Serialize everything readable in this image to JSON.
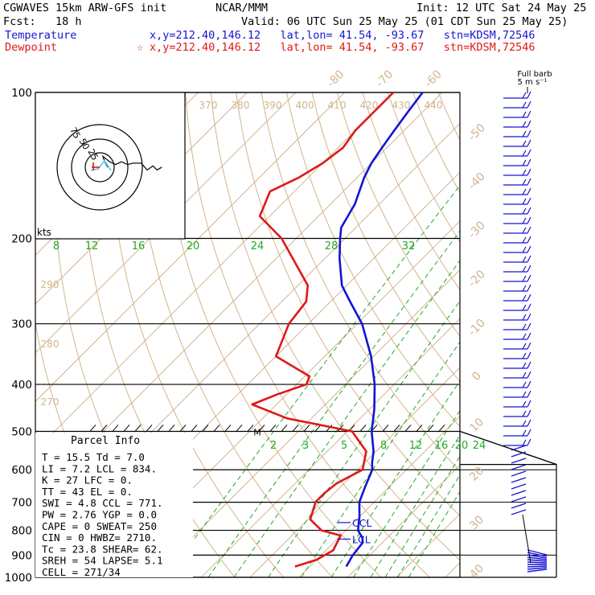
{
  "header": {
    "line1_left": "CGWAVES 15km ARW-GFS init",
    "line1_center": "NCAR/MMM",
    "line1_right": "Init: 12 UTC Sat 24 May 25",
    "line2_left": "Fcst:   18 h",
    "line2_right": "Valid: 06 UTC Sun 25 May 25 (01 CDT Sun 25 May 25)",
    "line3_label": "Temperature",
    "line3_info": "x,y=212.40,146.12   lat,lon= 41.54, -93.67   stn=KDSM,72546",
    "line4_label": "Dewpoint",
    "line4_info": "x,y=212.40,146.12   lat,lon= 41.54, -93.67   stn=KDSM,72546",
    "marker_symbol": "☆"
  },
  "colors": {
    "temperature": "#1414d4",
    "dewpoint": "#e01818",
    "isotherm": "#d2b48c",
    "mixing_ratio": "#22aa22",
    "grid": "#000000",
    "hodograph_line": "#55ccee"
  },
  "wind_panel": {
    "title_line1": "Full barb",
    "title_line2": "5 m s⁻¹"
  },
  "hodograph": {
    "units_label": "kts",
    "ring_labels": [
      "25",
      "50",
      "75"
    ]
  },
  "parcel_info": {
    "title": "Parcel Info",
    "rows": [
      "T  =   15.5 Td =   7.0",
      "LI =    7.2 LCL =  834.",
      "K  =     27 LFC =    0.",
      "TT =     43 EL  =    0.",
      "SWI =   4.8 CCL =  771.",
      "PW =   2.76 YGP =  0.0",
      "CAPE =    0 SWEAT=  250",
      "CIN  =    0 HWBZ= 2710.",
      "Tc  =  23.8 SHEAR=  62.",
      "SREH =   54 LAPSE=  5.1",
      "CELL = 271/34"
    ]
  },
  "chart_data": {
    "type": "skew-t",
    "pressure_axis": {
      "scale": "log",
      "ylim_hPa": [
        1000,
        100
      ],
      "ticks": [
        100,
        200,
        300,
        400,
        500,
        600,
        700,
        800,
        900,
        1000
      ]
    },
    "temperature_axis": {
      "xlim_C_at_1000hPa": [
        -44,
        43
      ],
      "isotherm_labels": [
        -80,
        -70,
        -60,
        -50,
        -40,
        -30,
        -20,
        -10,
        0,
        10,
        20,
        30,
        40
      ]
    },
    "dry_adiabat_labels_K": [
      270,
      280,
      290,
      370,
      380,
      390,
      400,
      410,
      420,
      430,
      440
    ],
    "mixing_ratio_labels_upper": [
      8,
      12,
      16,
      20,
      24,
      28,
      32
    ],
    "mixing_ratio_labels_lower": [
      2,
      3,
      5,
      8,
      12,
      16,
      20,
      24
    ],
    "series": [
      {
        "name": "Temperature",
        "points": [
          {
            "p": 950,
            "t": 17.5
          },
          {
            "p": 900,
            "t": 16.5
          },
          {
            "p": 850,
            "t": 16.0
          },
          {
            "p": 830,
            "t": 15.0
          },
          {
            "p": 800,
            "t": 12.5
          },
          {
            "p": 780,
            "t": 11.5
          },
          {
            "p": 750,
            "t": 10.0
          },
          {
            "p": 700,
            "t": 7.0
          },
          {
            "p": 650,
            "t": 5.0
          },
          {
            "p": 600,
            "t": 3.0
          },
          {
            "p": 580,
            "t": 1.5
          },
          {
            "p": 550,
            "t": -0.5
          },
          {
            "p": 500,
            "t": -5.0
          },
          {
            "p": 450,
            "t": -9.0
          },
          {
            "p": 400,
            "t": -14.0
          },
          {
            "p": 350,
            "t": -20.5
          },
          {
            "p": 300,
            "t": -29.0
          },
          {
            "p": 270,
            "t": -36.0
          },
          {
            "p": 250,
            "t": -41.0
          },
          {
            "p": 220,
            "t": -47.0
          },
          {
            "p": 200,
            "t": -51.0
          },
          {
            "p": 190,
            "t": -53.0
          },
          {
            "p": 170,
            "t": -55.0
          },
          {
            "p": 150,
            "t": -58.5
          },
          {
            "p": 140,
            "t": -60.0
          },
          {
            "p": 130,
            "t": -61.0
          },
          {
            "p": 120,
            "t": -62.0
          },
          {
            "p": 110,
            "t": -63.0
          },
          {
            "p": 100,
            "t": -64.0
          }
        ]
      },
      {
        "name": "Dewpoint",
        "points": [
          {
            "p": 950,
            "t": 7.0
          },
          {
            "p": 920,
            "t": 10.0
          },
          {
            "p": 880,
            "t": 11.5
          },
          {
            "p": 820,
            "t": 10.0
          },
          {
            "p": 800,
            "t": 5.0
          },
          {
            "p": 760,
            "t": 0.5
          },
          {
            "p": 700,
            "t": -2.0
          },
          {
            "p": 670,
            "t": -2.0
          },
          {
            "p": 640,
            "t": -1.5
          },
          {
            "p": 600,
            "t": 1.0
          },
          {
            "p": 550,
            "t": -2.0
          },
          {
            "p": 500,
            "t": -9.0
          },
          {
            "p": 470,
            "t": -25.0
          },
          {
            "p": 440,
            "t": -35.0
          },
          {
            "p": 420,
            "t": -32.0
          },
          {
            "p": 400,
            "t": -28.0
          },
          {
            "p": 385,
            "t": -29.0
          },
          {
            "p": 350,
            "t": -40.0
          },
          {
            "p": 300,
            "t": -44.0
          },
          {
            "p": 270,
            "t": -45.0
          },
          {
            "p": 250,
            "t": -48.0
          },
          {
            "p": 200,
            "t": -63.0
          },
          {
            "p": 180,
            "t": -72.0
          },
          {
            "p": 160,
            "t": -75.0
          },
          {
            "p": 150,
            "t": -72.0
          },
          {
            "p": 140,
            "t": -70.0
          },
          {
            "p": 130,
            "t": -69.0
          },
          {
            "p": 120,
            "t": -70.0
          },
          {
            "p": 110,
            "t": -70.0
          },
          {
            "p": 100,
            "t": -70.0
          }
        ]
      }
    ],
    "annotations": [
      {
        "label": "CCL",
        "p": 771
      },
      {
        "label": "LCL",
        "p": 834
      },
      {
        "label": "M",
        "p": 500
      }
    ],
    "winds": [
      {
        "p": 925,
        "barbs": 6
      },
      {
        "p": 850,
        "barbs": 3
      },
      {
        "p": 800,
        "barbs": 3
      },
      {
        "p": 750,
        "barbs": 3
      },
      {
        "p": 700,
        "barbs": 3
      },
      {
        "p": 650,
        "barbs": 3
      },
      {
        "p": 600,
        "barbs": 2
      },
      {
        "p": 550,
        "barbs": 2
      },
      {
        "p": 500,
        "barbs": 3
      },
      {
        "p": 450,
        "barbs": 3
      },
      {
        "p": 400,
        "barbs": 3
      },
      {
        "p": 350,
        "barbs": 4
      },
      {
        "p": 300,
        "barbs": 4
      },
      {
        "p": 250,
        "barbs": 4
      },
      {
        "p": 200,
        "barbs": 3
      },
      {
        "p": 150,
        "barbs": 3
      },
      {
        "p": 100,
        "barbs": 3
      }
    ],
    "hodograph_trace": [
      {
        "u": 0,
        "v": 0
      },
      {
        "u": -3,
        "v": 4
      },
      {
        "u": -5,
        "v": 8
      },
      {
        "u": 2,
        "v": 4
      },
      {
        "u": 8,
        "v": 2
      },
      {
        "u": 14,
        "v": 4
      },
      {
        "u": 20,
        "v": 2
      },
      {
        "u": 26,
        "v": 3
      },
      {
        "u": 34,
        "v": 3
      },
      {
        "u": 40,
        "v": -2
      },
      {
        "u": 46,
        "v": 1
      },
      {
        "u": 50,
        "v": -2
      },
      {
        "u": 55,
        "v": 0
      }
    ]
  }
}
